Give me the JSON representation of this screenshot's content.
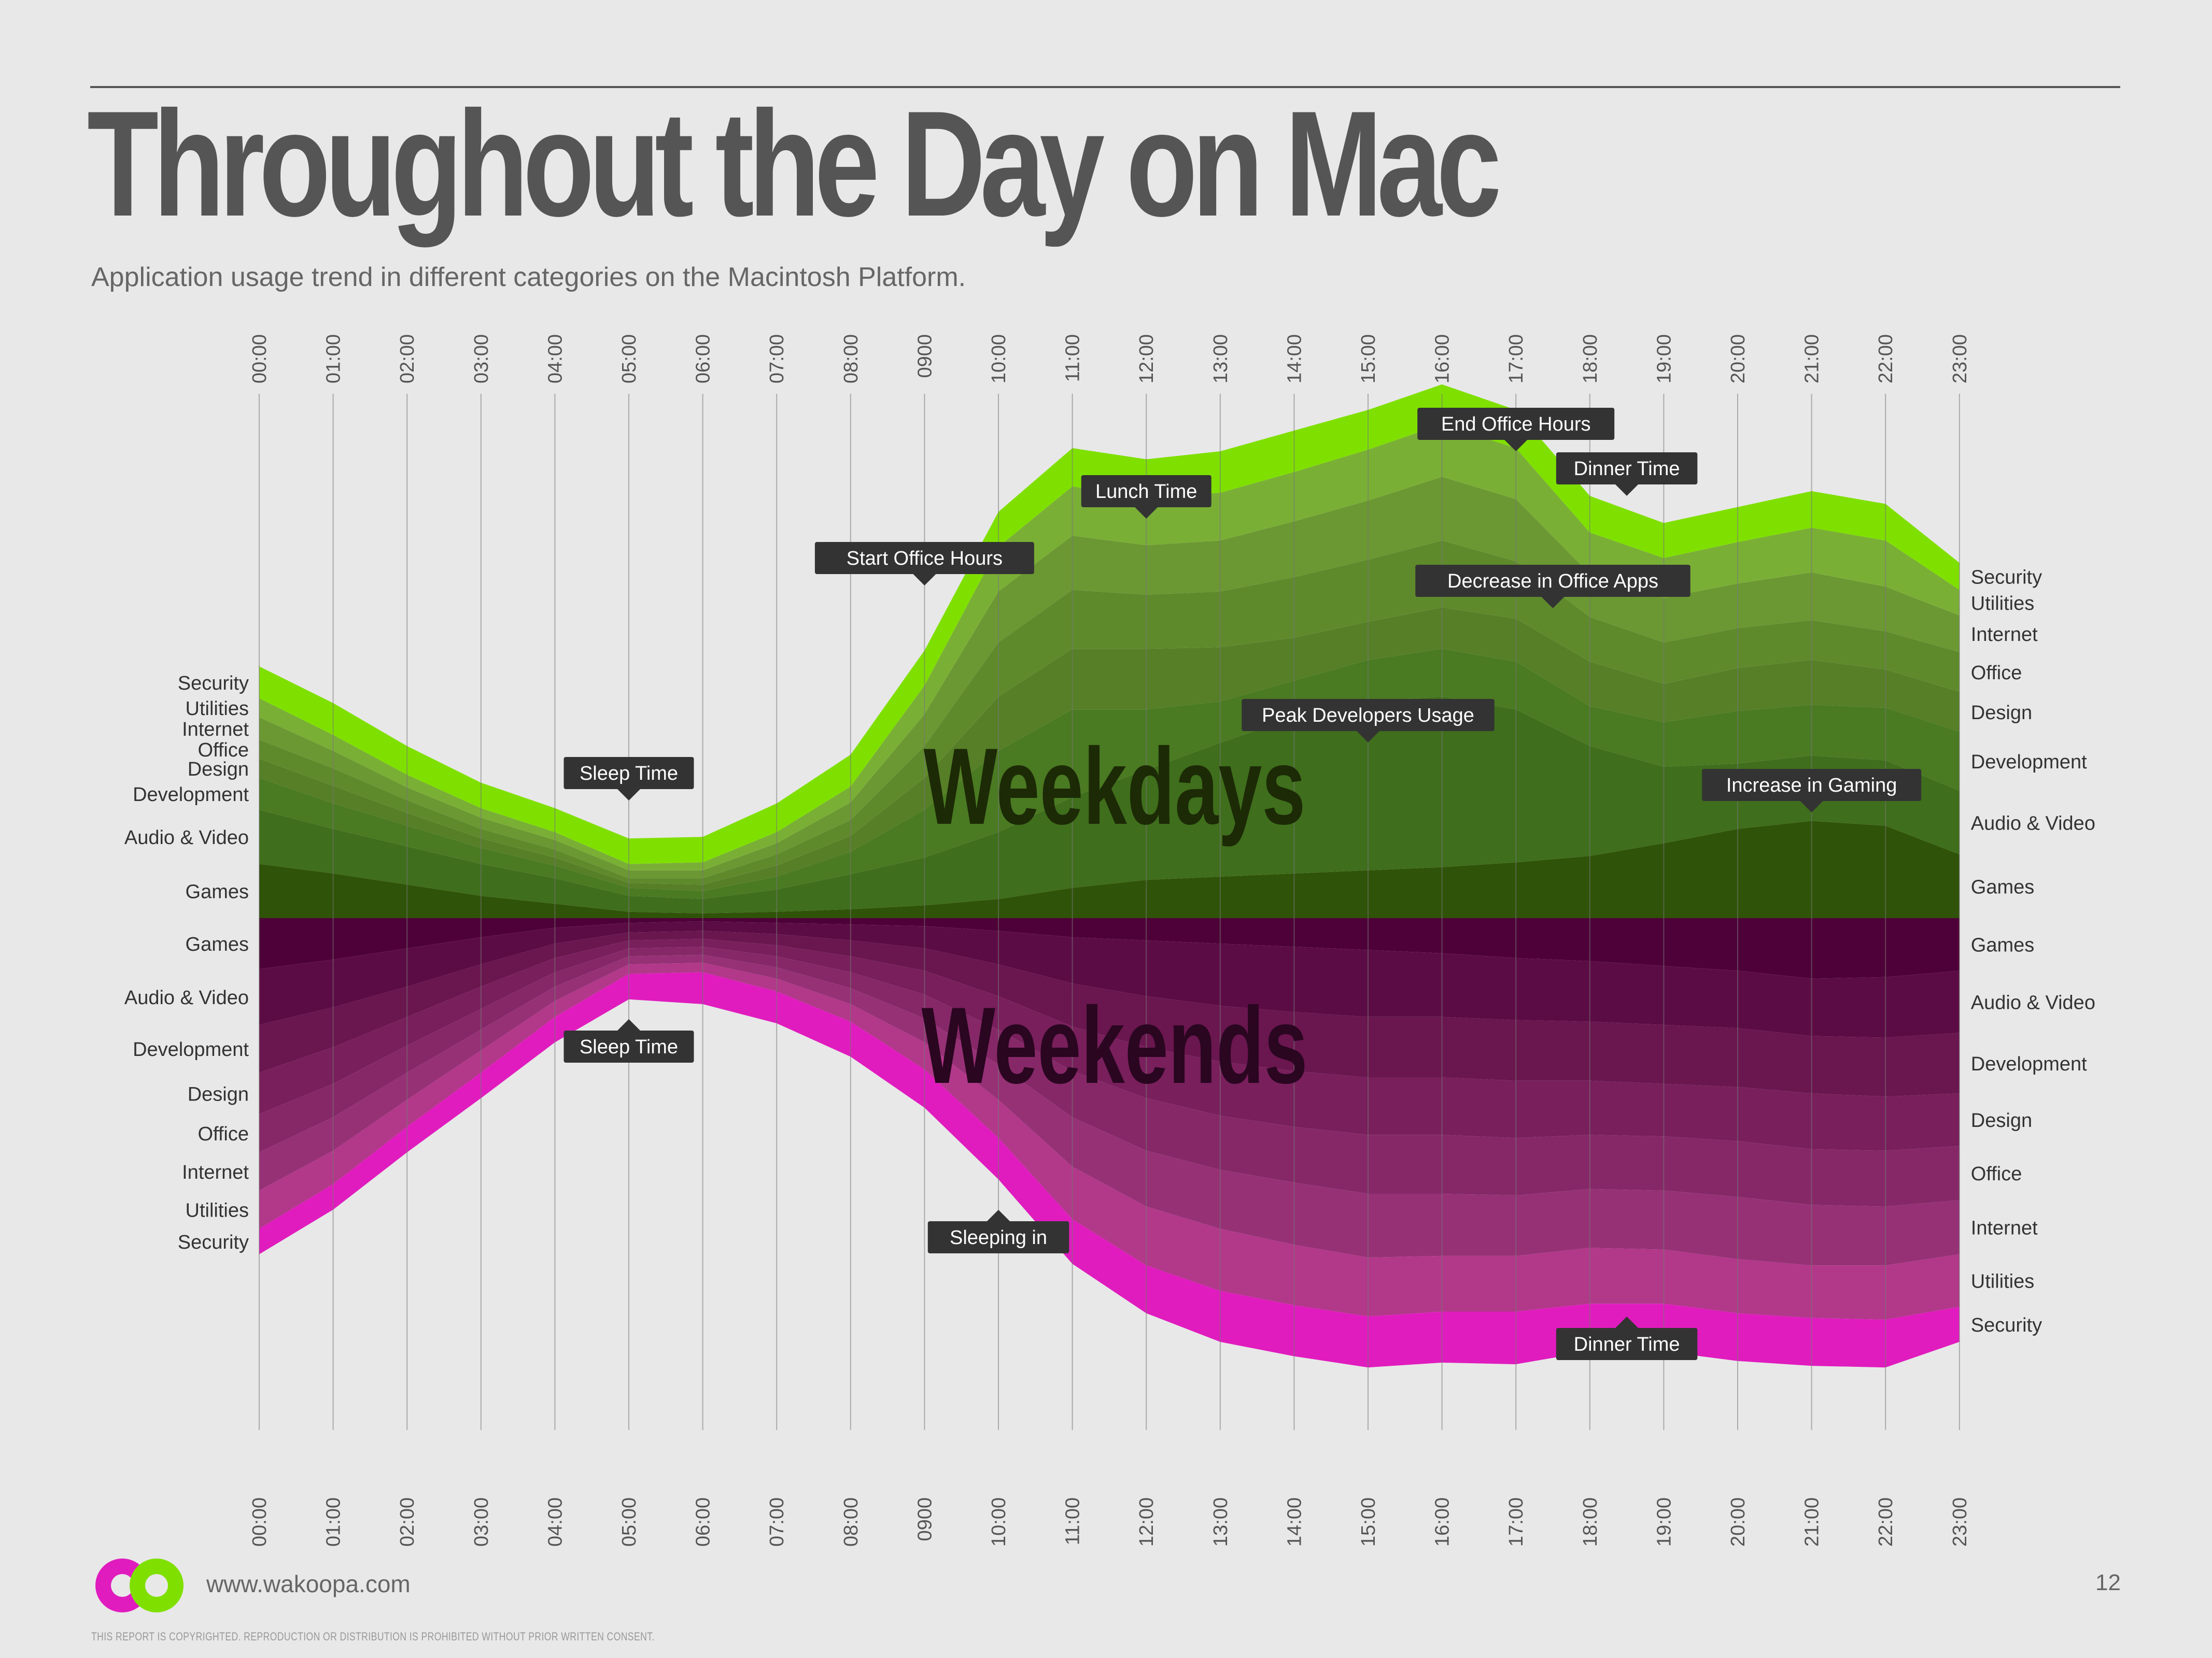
{
  "header": {
    "title": "Throughout the Day on Mac",
    "subtitle": "Application usage trend in different categories on the Macintosh Platform."
  },
  "footer": {
    "url": "www.wakoopa.com",
    "page_number": "12",
    "copyright": "THIS REPORT IS COPYRIGHTED. REPRODUCTION OR DISTRIBUTION IS PROHIBITED WITHOUT PRIOR WRITTEN CONSENT."
  },
  "colors": {
    "weekday_palette": [
      "#2f5308",
      "#3f6e1c",
      "#4a7a22",
      "#567f27",
      "#5f8a2c",
      "#6b9832",
      "#7aaf36",
      "#7fe000"
    ],
    "weekend_palette": [
      "#4e0038",
      "#5c0c45",
      "#6a164f",
      "#781f5c",
      "#862868",
      "#963176",
      "#b2388a",
      "#e01cbe"
    ],
    "logo_pink": "#e01cbe",
    "logo_green": "#7fe000"
  },
  "chart_data": {
    "type": "area",
    "x": [
      "00:00",
      "01:00",
      "02:00",
      "03:00",
      "04:00",
      "05:00",
      "06:00",
      "07:00",
      "08:00",
      "0900",
      "10:00",
      "11:00",
      "12:00",
      "13:00",
      "14:00",
      "15:00",
      "16:00",
      "17:00",
      "18:00",
      "19:00",
      "20:00",
      "21:00",
      "22:00",
      "23:00"
    ],
    "categories": [
      "Games",
      "Audio & Video",
      "Development",
      "Design",
      "Office",
      "Internet",
      "Utilities",
      "Security"
    ],
    "series_weekdays": {
      "label": "Weekdays",
      "values": {
        "Games": [
          17.0,
          14.0,
          10.5,
          7.0,
          4.5,
          2.0,
          1.5,
          2.0,
          2.8,
          4.0,
          6.0,
          9.5,
          12.0,
          13.0,
          14.0,
          15.0,
          16.0,
          17.5,
          19.5,
          23.5,
          28.0,
          30.5,
          29.0,
          20.0
        ],
        "Audio & Video": [
          17.0,
          14.0,
          12.0,
          10.0,
          8.0,
          5.0,
          4.5,
          7.0,
          11.0,
          15.0,
          21.0,
          28.5,
          34.5,
          42.0,
          49.0,
          53.0,
          53.5,
          48.0,
          34.5,
          24.0,
          20.5,
          20.5,
          20.5,
          20.0
        ],
        "Development": [
          10.0,
          8.0,
          6.5,
          5.0,
          4.0,
          2.5,
          2.5,
          4.0,
          7.0,
          15.0,
          25.5,
          27.5,
          19.0,
          13.0,
          11.5,
          13.0,
          15.0,
          15.0,
          12.5,
          14.0,
          16.5,
          16.0,
          16.5,
          18.5
        ],
        "Design": [
          6.0,
          5.5,
          4.0,
          3.0,
          2.5,
          1.5,
          2.0,
          3.5,
          5.0,
          10.0,
          17.0,
          19.0,
          19.0,
          17.0,
          13.5,
          12.0,
          13.0,
          13.5,
          14.0,
          12.0,
          13.5,
          14.0,
          12.0,
          12.5
        ],
        "Office": [
          6.0,
          5.5,
          4.0,
          3.0,
          2.5,
          1.5,
          2.0,
          3.5,
          5.0,
          10.0,
          17.0,
          18.5,
          17.0,
          17.5,
          19.0,
          19.5,
          21.0,
          18.0,
          14.0,
          13.0,
          12.5,
          12.5,
          12.0,
          12.5
        ],
        "Internet": [
          7.0,
          5.5,
          4.0,
          3.5,
          3.0,
          2.5,
          2.5,
          3.5,
          5.5,
          10.0,
          16.0,
          17.0,
          15.5,
          16.0,
          17.5,
          18.5,
          20.0,
          19.5,
          13.5,
          14.0,
          14.0,
          15.0,
          14.0,
          11.5
        ],
        "Utilities": [
          6.0,
          5.0,
          4.0,
          3.0,
          2.5,
          2.0,
          2.5,
          3.5,
          5.0,
          9.0,
          14.0,
          15.5,
          15.0,
          15.0,
          15.5,
          16.0,
          16.5,
          16.0,
          13.0,
          12.5,
          13.0,
          14.0,
          14.5,
          8.0
        ],
        "Security": [
          10.0,
          10.0,
          9.0,
          8.0,
          7.5,
          8.0,
          8.0,
          9.0,
          10.0,
          11.0,
          11.0,
          12.0,
          12.0,
          13.0,
          13.0,
          12.5,
          12.5,
          12.0,
          11.5,
          11.0,
          11.0,
          11.5,
          11.5,
          8.5
        ]
      }
    },
    "series_weekends": {
      "label": "Weekends",
      "values": {
        "Games": [
          16.0,
          13.0,
          9.5,
          6.0,
          3.0,
          1.5,
          1.0,
          1.5,
          2.0,
          2.5,
          4.0,
          6.0,
          7.0,
          8.0,
          9.0,
          10.0,
          11.0,
          12.5,
          13.5,
          15.0,
          16.5,
          19.0,
          18.5,
          16.5
        ],
        "Audio & Video": [
          17.5,
          15.0,
          12.0,
          8.5,
          5.0,
          3.0,
          3.0,
          3.5,
          5.0,
          7.0,
          10.5,
          14.5,
          17.5,
          19.5,
          20.5,
          21.0,
          20.0,
          19.5,
          19.0,
          18.5,
          18.0,
          18.0,
          19.0,
          19.5
        ],
        "Development": [
          15.0,
          12.5,
          9.5,
          7.0,
          4.5,
          2.5,
          2.5,
          3.5,
          5.0,
          7.0,
          10.0,
          13.5,
          16.0,
          17.5,
          18.5,
          19.0,
          19.0,
          19.0,
          18.5,
          18.5,
          18.5,
          18.0,
          18.5,
          19.0
        ],
        "Design": [
          13.0,
          11.5,
          9.0,
          7.0,
          4.5,
          2.5,
          2.5,
          3.5,
          5.0,
          7.5,
          10.5,
          14.0,
          16.0,
          17.0,
          17.5,
          18.0,
          18.0,
          18.0,
          17.0,
          16.5,
          17.0,
          17.5,
          17.0,
          16.5
        ],
        "Office": [
          12.0,
          10.5,
          8.5,
          6.5,
          4.5,
          2.5,
          2.5,
          3.5,
          5.0,
          7.5,
          11.0,
          14.5,
          16.5,
          17.0,
          17.5,
          18.5,
          18.5,
          18.0,
          17.0,
          17.0,
          17.5,
          17.5,
          17.5,
          17.0
        ],
        "Internet": [
          12.0,
          10.5,
          8.5,
          6.5,
          4.5,
          2.5,
          2.5,
          3.5,
          5.0,
          7.5,
          11.0,
          15.5,
          17.5,
          18.5,
          19.5,
          20.0,
          19.5,
          19.0,
          18.5,
          18.5,
          19.5,
          19.0,
          18.5,
          17.0
        ],
        "Utilities": [
          12.0,
          10.5,
          8.5,
          7.0,
          5.0,
          3.0,
          3.0,
          4.0,
          5.5,
          8.5,
          12.0,
          16.5,
          18.5,
          19.5,
          19.0,
          18.5,
          17.5,
          17.5,
          17.5,
          17.0,
          17.0,
          16.5,
          17.0,
          16.5
        ],
        "Security": [
          8.0,
          8.0,
          8.0,
          8.0,
          8.0,
          8.0,
          10.0,
          10.0,
          11.0,
          12.0,
          13.0,
          14.0,
          15.0,
          16.0,
          16.0,
          16.0,
          16.0,
          16.5,
          15.0,
          15.0,
          15.0,
          15.0,
          15.0,
          11.0
        ]
      }
    },
    "series_labels_left_weekdays": [
      "Security",
      "Utilities",
      "Internet",
      "Office",
      "Design",
      "Development",
      "Audio & Video",
      "Games"
    ],
    "series_labels_right_weekdays": [
      "Security",
      "Utilities",
      "Internet",
      "Office",
      "Design",
      "Development",
      "Audio & Video",
      "Games"
    ],
    "series_labels_left_weekends": [
      "Games",
      "Audio & Video",
      "Development",
      "Design",
      "Office",
      "Internet",
      "Utilities",
      "Security"
    ],
    "series_labels_right_weekends": [
      "Games",
      "Audio & Video",
      "Development",
      "Design",
      "Office",
      "Internet",
      "Utilities",
      "Security"
    ],
    "annotations_weekdays": [
      {
        "text": "Sleep Time",
        "at": "05:00",
        "pointer": "down"
      },
      {
        "text": "Start Office Hours",
        "at": "0900",
        "pointer": "down"
      },
      {
        "text": "Lunch Time",
        "at": "12:00",
        "pointer": "down"
      },
      {
        "text": "End Office Hours",
        "at": "17:00",
        "pointer": "down"
      },
      {
        "text": "Dinner Time",
        "at": "18:30",
        "pointer": "down"
      },
      {
        "text": "Decrease in Office Apps",
        "at": "17:30",
        "pointer": "down"
      },
      {
        "text": "Peak Developers Usage",
        "at": "15:00",
        "pointer": "down"
      },
      {
        "text": "Increase in Gaming",
        "at": "21:00",
        "pointer": "down"
      }
    ],
    "annotations_weekends": [
      {
        "text": "Sleep Time",
        "at": "05:00",
        "pointer": "up"
      },
      {
        "text": "Sleeping in",
        "at": "10:00",
        "pointer": "up"
      },
      {
        "text": "Dinner Time",
        "at": "18:30",
        "pointer": "up"
      }
    ],
    "grid": true,
    "legend": "none"
  }
}
